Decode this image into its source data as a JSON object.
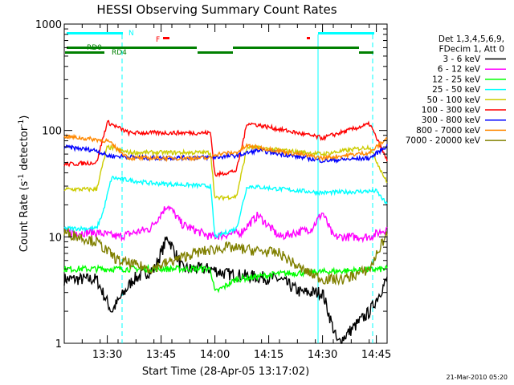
{
  "chart_data": {
    "type": "line",
    "title": "HESSI Observing Summary Count Rates",
    "xlabel": "Start Time (28-Apr-05 13:17:02)",
    "ylabel_main": "Count Rate (s",
    "ylabel_sup1": "-1",
    "ylabel_mid": " detector",
    "ylabel_sup2": "-1",
    "ylabel_end": ")",
    "y_scale": "log",
    "ylim": [
      1,
      1000
    ],
    "xlim_minutes": [
      13.3,
      14.8
    ],
    "x_ticks": [
      {
        "value": 13.5,
        "label": "13:30"
      },
      {
        "value": 13.75,
        "label": "13:45"
      },
      {
        "value": 14.0,
        "label": "14:00"
      },
      {
        "value": 14.25,
        "label": "14:15"
      },
      {
        "value": 14.5,
        "label": "14:30"
      },
      {
        "value": 14.75,
        "label": "14:45"
      }
    ],
    "y_ticks": [
      {
        "value": 1,
        "label": "1"
      },
      {
        "value": 10,
        "label": "10"
      },
      {
        "value": 100,
        "label": "100"
      },
      {
        "value": 1000,
        "label": "1000"
      }
    ],
    "legend": {
      "placement": "right",
      "header": [
        "Det 1,3,4,5,6,9,",
        "FDecim 1, Att 0"
      ],
      "entries": [
        {
          "label": "3 - 6 keV",
          "color": "#000000"
        },
        {
          "label": "6 - 12 keV",
          "color": "#ff00ff"
        },
        {
          "label": "12 - 25 keV",
          "color": "#00ff00"
        },
        {
          "label": "25 - 50 keV",
          "color": "#00ffff"
        },
        {
          "label": "50 - 100 keV",
          "color": "#cccc00"
        },
        {
          "label": "100 - 300 keV",
          "color": "#ff0000"
        },
        {
          "label": "300 - 800 keV",
          "color": "#0000ff"
        },
        {
          "label": "800 - 7000 keV",
          "color": "#ff8800"
        },
        {
          "label": "7000 - 20000 keV",
          "color": "#808000"
        }
      ]
    },
    "flags": [
      {
        "label": "N",
        "color": "#00ffff"
      },
      {
        "label": "F",
        "color": "#ff0000"
      },
      {
        "label": "RD0",
        "color": "#008000"
      },
      {
        "label": "RD4",
        "color": "#008000"
      }
    ],
    "series": [
      {
        "name": "3 - 6 keV",
        "color": "#000000",
        "points": [
          [
            13.3,
            4
          ],
          [
            13.45,
            4
          ],
          [
            13.52,
            2
          ],
          [
            13.62,
            4
          ],
          [
            13.72,
            5
          ],
          [
            13.78,
            10
          ],
          [
            13.85,
            5
          ],
          [
            13.98,
            5
          ],
          [
            14.05,
            4.5
          ],
          [
            14.3,
            4
          ],
          [
            14.4,
            3
          ],
          [
            14.5,
            3
          ],
          [
            14.57,
            1
          ],
          [
            14.72,
            2
          ],
          [
            14.8,
            4
          ]
        ]
      },
      {
        "name": "6 - 12 keV",
        "color": "#ff00ff",
        "points": [
          [
            13.3,
            11
          ],
          [
            13.45,
            11
          ],
          [
            13.55,
            10
          ],
          [
            13.7,
            12
          ],
          [
            13.78,
            20
          ],
          [
            13.85,
            13
          ],
          [
            13.98,
            10
          ],
          [
            14.12,
            11
          ],
          [
            14.2,
            16
          ],
          [
            14.3,
            10
          ],
          [
            14.45,
            12
          ],
          [
            14.5,
            17
          ],
          [
            14.55,
            10
          ],
          [
            14.72,
            10
          ],
          [
            14.8,
            12
          ]
        ]
      },
      {
        "name": "12 - 25 keV",
        "color": "#00ff00",
        "points": [
          [
            13.3,
            5
          ],
          [
            13.98,
            5
          ],
          [
            14.0,
            3
          ],
          [
            14.1,
            4
          ],
          [
            14.3,
            4.5
          ],
          [
            14.8,
            5
          ]
        ]
      },
      {
        "name": "25 - 50 keV",
        "color": "#00ffff",
        "points": [
          [
            13.3,
            12
          ],
          [
            13.45,
            12
          ],
          [
            13.48,
            17
          ],
          [
            13.52,
            36
          ],
          [
            13.7,
            32
          ],
          [
            13.98,
            30
          ],
          [
            14.0,
            10
          ],
          [
            14.1,
            12
          ],
          [
            14.15,
            30
          ],
          [
            14.5,
            26
          ],
          [
            14.75,
            27
          ],
          [
            14.8,
            20
          ]
        ]
      },
      {
        "name": "50 - 100 keV",
        "color": "#cccc00",
        "points": [
          [
            13.3,
            28
          ],
          [
            13.45,
            28
          ],
          [
            13.5,
            70
          ],
          [
            13.6,
            62
          ],
          [
            13.98,
            62
          ],
          [
            14.0,
            23
          ],
          [
            14.1,
            24
          ],
          [
            14.15,
            70
          ],
          [
            14.5,
            60
          ],
          [
            14.72,
            70
          ],
          [
            14.8,
            32
          ]
        ]
      },
      {
        "name": "100 - 300 keV",
        "color": "#ff0000",
        "points": [
          [
            13.3,
            48
          ],
          [
            13.45,
            50
          ],
          [
            13.5,
            120
          ],
          [
            13.6,
            95
          ],
          [
            13.98,
            95
          ],
          [
            14.0,
            38
          ],
          [
            14.1,
            42
          ],
          [
            14.15,
            118
          ],
          [
            14.5,
            85
          ],
          [
            14.72,
            115
          ],
          [
            14.8,
            52
          ]
        ]
      },
      {
        "name": "300 - 800 keV",
        "color": "#0000ff",
        "points": [
          [
            13.3,
            70
          ],
          [
            13.45,
            65
          ],
          [
            13.5,
            58
          ],
          [
            13.7,
            55
          ],
          [
            13.98,
            56
          ],
          [
            14.0,
            56
          ],
          [
            14.1,
            58
          ],
          [
            14.2,
            65
          ],
          [
            14.5,
            52
          ],
          [
            14.72,
            55
          ],
          [
            14.8,
            72
          ]
        ]
      },
      {
        "name": "800 - 7000 keV",
        "color": "#ff8800",
        "points": [
          [
            13.3,
            88
          ],
          [
            13.45,
            82
          ],
          [
            13.5,
            80
          ],
          [
            13.6,
            55
          ],
          [
            13.98,
            55
          ],
          [
            14.0,
            60
          ],
          [
            14.1,
            62
          ],
          [
            14.15,
            72
          ],
          [
            14.5,
            55
          ],
          [
            14.72,
            62
          ],
          [
            14.8,
            85
          ]
        ]
      },
      {
        "name": "7000 - 20000 keV",
        "color": "#808000",
        "points": [
          [
            13.3,
            11
          ],
          [
            13.45,
            9
          ],
          [
            13.55,
            6
          ],
          [
            13.7,
            5
          ],
          [
            13.9,
            7
          ],
          [
            14.05,
            8
          ],
          [
            14.3,
            7
          ],
          [
            14.4,
            5
          ],
          [
            14.5,
            4
          ],
          [
            14.6,
            4
          ],
          [
            14.72,
            5
          ],
          [
            14.8,
            11
          ]
        ]
      }
    ]
  },
  "footer": {
    "timestamp": "21-Mar-2010 05:20"
  }
}
